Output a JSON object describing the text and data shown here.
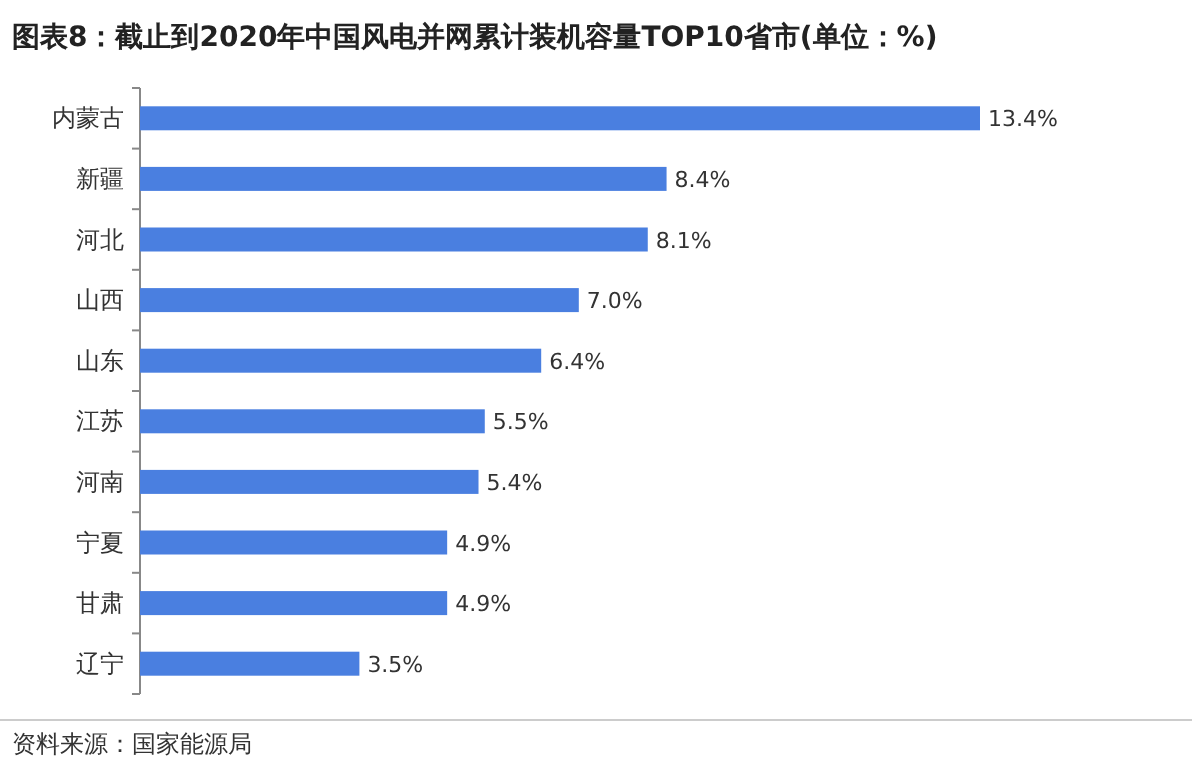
{
  "chart_data": {
    "type": "bar",
    "orientation": "horizontal",
    "title": "图表8：截止到2020年中国风电并网累计装机容量TOP10省市(单位：%)",
    "categories": [
      "内蒙古",
      "新疆",
      "河北",
      "山西",
      "山东",
      "江苏",
      "河南",
      "宁夏",
      "甘肃",
      "辽宁"
    ],
    "values": [
      13.4,
      8.4,
      8.1,
      7.0,
      6.4,
      5.5,
      5.4,
      4.9,
      4.9,
      3.5
    ],
    "value_labels": [
      "13.4%",
      "8.4%",
      "8.1%",
      "7.0%",
      "6.4%",
      "5.5%",
      "5.4%",
      "4.9%",
      "4.9%",
      "3.5%"
    ],
    "color": "#4a7fe0",
    "annotations": [
      "资料来源：国家能源局"
    ]
  }
}
